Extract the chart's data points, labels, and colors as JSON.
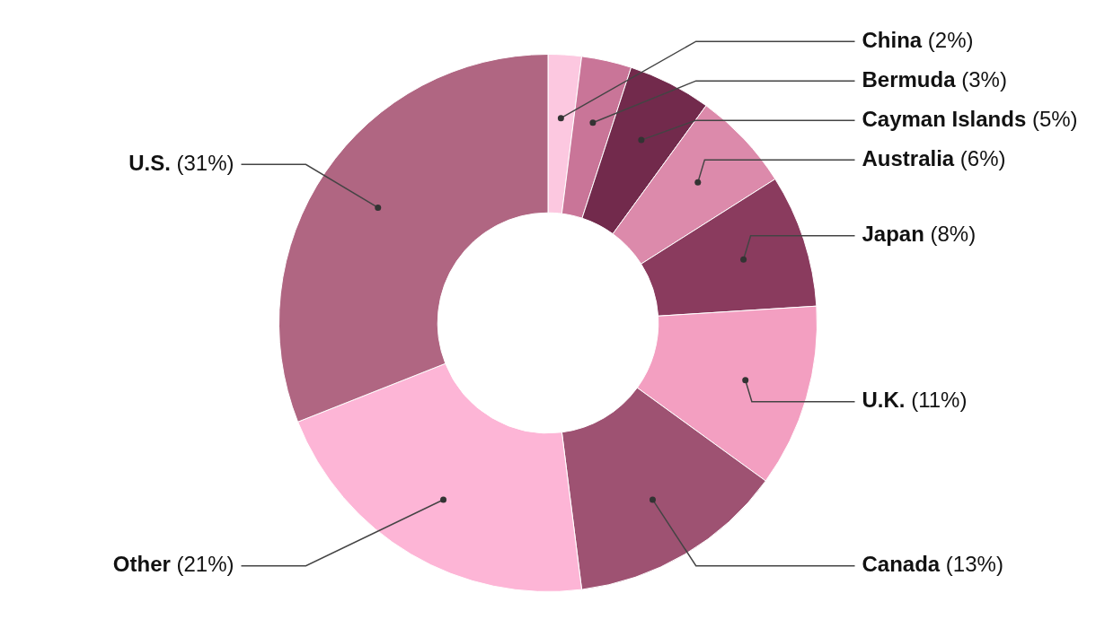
{
  "chart_data": {
    "type": "donut",
    "categories": [
      "China",
      "Bermuda",
      "Cayman Islands",
      "Australia",
      "Japan",
      "U.K.",
      "Canada",
      "Other",
      "U.S."
    ],
    "values": [
      2,
      3,
      5,
      6,
      8,
      11,
      13,
      21,
      31
    ],
    "colors": [
      "#fcc8e0",
      "#c97598",
      "#722a4c",
      "#dc8aab",
      "#8a3b5e",
      "#f39fc1",
      "#9e5272",
      "#fdb5d6",
      "#b06682"
    ],
    "value_labels": [
      "(2%)",
      "(3%)",
      "(5%)",
      "(6%)",
      "(8%)",
      "(11%)",
      "(13%)",
      "(21%)",
      "(31%)"
    ],
    "legend": false
  }
}
